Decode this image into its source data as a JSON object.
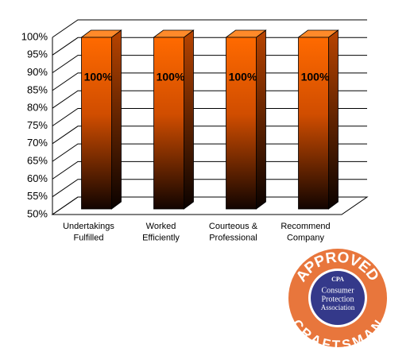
{
  "chart_data": {
    "type": "bar3d",
    "categories": [
      "Undertakings\nFulfilled",
      "Worked\nEfficiently",
      "Courteous &\nProfessional",
      "Recommend\nCompany"
    ],
    "values": [
      100,
      100,
      100,
      100
    ],
    "value_labels": [
      "100%",
      "100%",
      "100%",
      "100%"
    ],
    "color": "#ff6a00",
    "ylim": [
      50,
      100
    ],
    "yticks": [
      {
        "value": 50,
        "label": "50%"
      },
      {
        "value": 55,
        "label": "55%"
      },
      {
        "value": 60,
        "label": "60%"
      },
      {
        "value": 65,
        "label": "65%"
      },
      {
        "value": 70,
        "label": "70%"
      },
      {
        "value": 75,
        "label": "75%"
      },
      {
        "value": 80,
        "label": "80%"
      },
      {
        "value": 85,
        "label": "85%"
      },
      {
        "value": 90,
        "label": "90%"
      },
      {
        "value": 95,
        "label": "95%"
      },
      {
        "value": 100,
        "label": "100%"
      }
    ],
    "grid": true
  },
  "badge": {
    "top": "APPROVED",
    "bottom": "CRAFTSMAN",
    "abbr": "CPA",
    "lines": [
      "Consumer",
      "Protection",
      "Association"
    ]
  }
}
